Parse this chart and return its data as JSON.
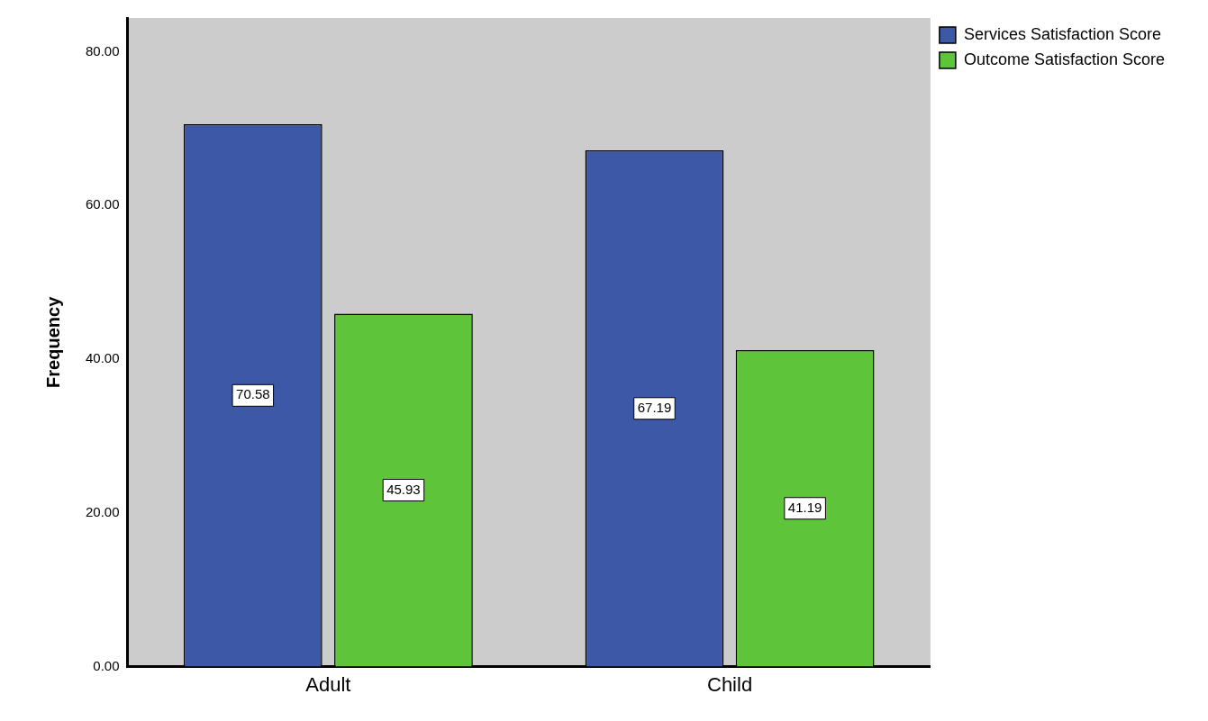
{
  "chart_data": {
    "type": "bar",
    "ylabel": "Frequency",
    "categories": [
      "Adult",
      "Child"
    ],
    "series": [
      {
        "name": "Services Satisfaction Score",
        "color": "#3e58a8",
        "values": [
          70.58,
          67.19
        ]
      },
      {
        "name": "Outcome Satisfaction Score",
        "color": "#5ec43a",
        "values": [
          45.93,
          41.19
        ]
      }
    ],
    "ylim": [
      0,
      84.4
    ],
    "yticks": [
      {
        "value": 0,
        "label": "0.00"
      },
      {
        "value": 20,
        "label": "20.00"
      },
      {
        "value": 40,
        "label": "40.00"
      },
      {
        "value": 60,
        "label": "60.00"
      },
      {
        "value": 80,
        "label": "80.00"
      }
    ],
    "grid": false,
    "legend": "top right",
    "data_labels": true
  }
}
